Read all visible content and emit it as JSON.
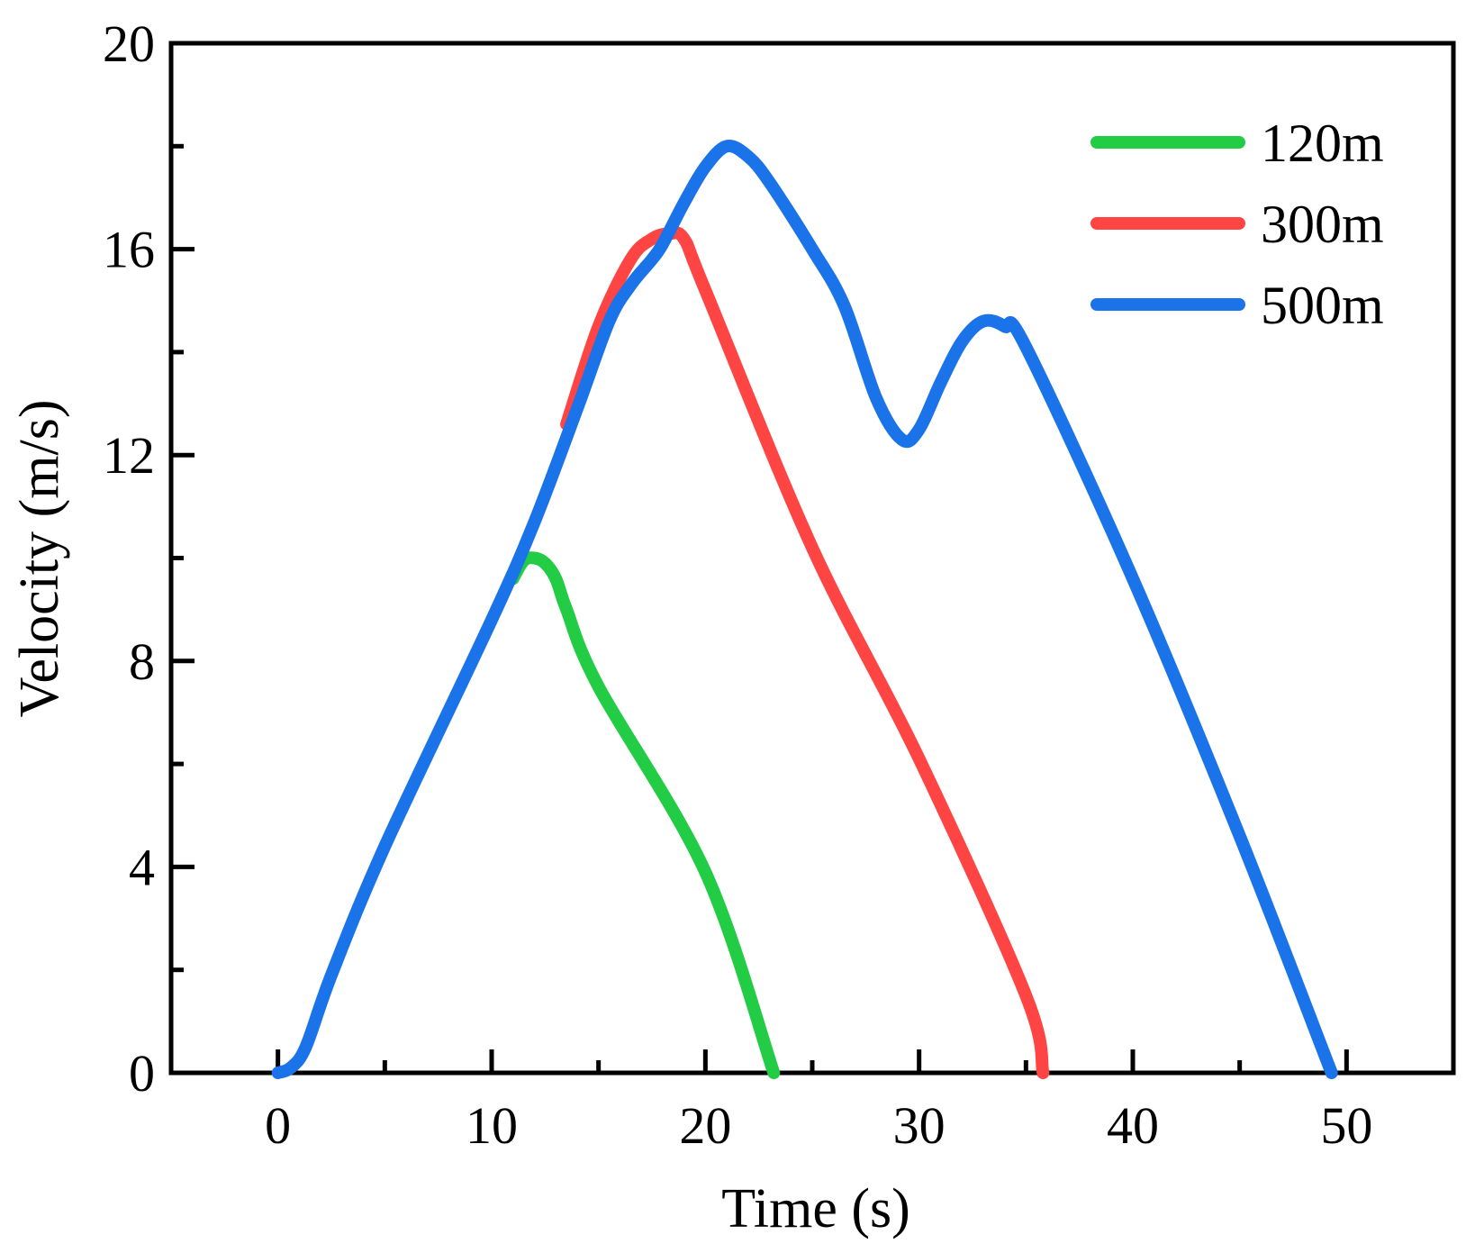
{
  "chart_data": {
    "type": "line",
    "title": "",
    "xlabel": "Time (s)",
    "ylabel": "Velocity (m/s)",
    "xlim": [
      -5,
      55
    ],
    "ylim": [
      0,
      20
    ],
    "xticks": [
      0,
      10,
      20,
      30,
      40,
      50
    ],
    "yticks": [
      0,
      4,
      8,
      12,
      16,
      20
    ],
    "xtick_labels": [
      "0",
      "10",
      "20",
      "30",
      "40",
      "50"
    ],
    "ytick_labels": [
      "0",
      "4",
      "8",
      "12",
      "16",
      "20"
    ],
    "grid": false,
    "legend_position": "top-right",
    "series": [
      {
        "name": "120m",
        "color": "#22cc44",
        "points": [
          [
            11,
            9.6
          ],
          [
            11.5,
            9.95
          ],
          [
            12,
            10.0
          ],
          [
            12.5,
            9.9
          ],
          [
            13,
            9.6
          ],
          [
            13.5,
            9.0
          ],
          [
            15,
            7.5
          ],
          [
            20,
            3.9
          ],
          [
            23.2,
            0
          ]
        ]
      },
      {
        "name": "300m",
        "color": "#ff4444",
        "points": [
          [
            13.5,
            12.6
          ],
          [
            15,
            14.5
          ],
          [
            16.5,
            15.8
          ],
          [
            17.5,
            16.2
          ],
          [
            18.3,
            16.3
          ],
          [
            19,
            16.2
          ],
          [
            20,
            15.2
          ],
          [
            25,
            10.2
          ],
          [
            30,
            6.1
          ],
          [
            35,
            1.5
          ],
          [
            35.8,
            0
          ]
        ]
      },
      {
        "name": "500m",
        "color": "#1a73e8",
        "points": [
          [
            0,
            0
          ],
          [
            0.6,
            0.1
          ],
          [
            1.3,
            0.5
          ],
          [
            2.5,
            1.9
          ],
          [
            5,
            4.4
          ],
          [
            10,
            8.8
          ],
          [
            12,
            10.7
          ],
          [
            14,
            12.9
          ],
          [
            15.5,
            14.6
          ],
          [
            16.5,
            15.3
          ],
          [
            17.5,
            15.8
          ],
          [
            18,
            16.1
          ],
          [
            19,
            16.9
          ],
          [
            20,
            17.6
          ],
          [
            21,
            18.0
          ],
          [
            22,
            17.8
          ],
          [
            23,
            17.3
          ],
          [
            25,
            16.0
          ],
          [
            26.5,
            14.9
          ],
          [
            28,
            13.1
          ],
          [
            29.2,
            12.3
          ],
          [
            30,
            12.5
          ],
          [
            31,
            13.4
          ],
          [
            32,
            14.2
          ],
          [
            33,
            14.6
          ],
          [
            34,
            14.5
          ],
          [
            35,
            14.1
          ],
          [
            40,
            9.6
          ],
          [
            45,
            4.6
          ],
          [
            49.3,
            0
          ]
        ]
      }
    ]
  }
}
